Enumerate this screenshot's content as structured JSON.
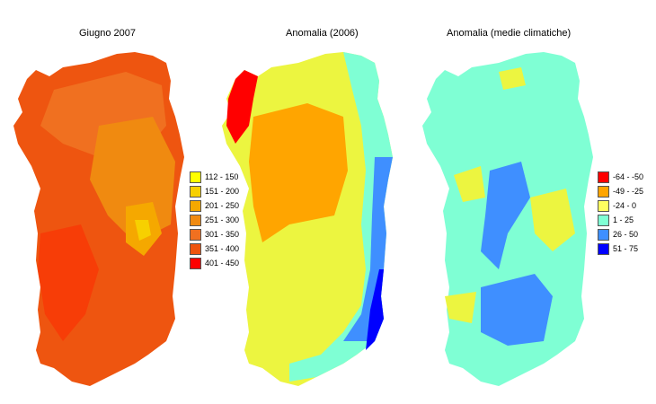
{
  "panels": [
    {
      "title": "Giugno 2007"
    },
    {
      "title": "Anomalia (2006)"
    },
    {
      "title": "Anomalia (medie climatiche)"
    }
  ],
  "legend_left": [
    {
      "label": "112 - 150",
      "color": "#ffff00"
    },
    {
      "label": "151 - 200",
      "color": "#f7d000"
    },
    {
      "label": "201 - 250",
      "color": "#f5a800"
    },
    {
      "label": "251 - 300",
      "color": "#f08a10"
    },
    {
      "label": "301 - 350",
      "color": "#f07020"
    },
    {
      "label": "351 - 400",
      "color": "#ee5510"
    },
    {
      "label": "401 - 450",
      "color": "#ff0000"
    }
  ],
  "legend_right": [
    {
      "label": "-64 - -50",
      "color": "#ff0000"
    },
    {
      "label": "-49 - -25",
      "color": "#ffa500"
    },
    {
      "label": "-24 - 0",
      "color": "#ffff60"
    },
    {
      "label": "1 - 25",
      "color": "#7fffd4"
    },
    {
      "label": "26 - 50",
      "color": "#3f8fff"
    },
    {
      "label": "51 - 75",
      "color": "#0000ff"
    }
  ]
}
